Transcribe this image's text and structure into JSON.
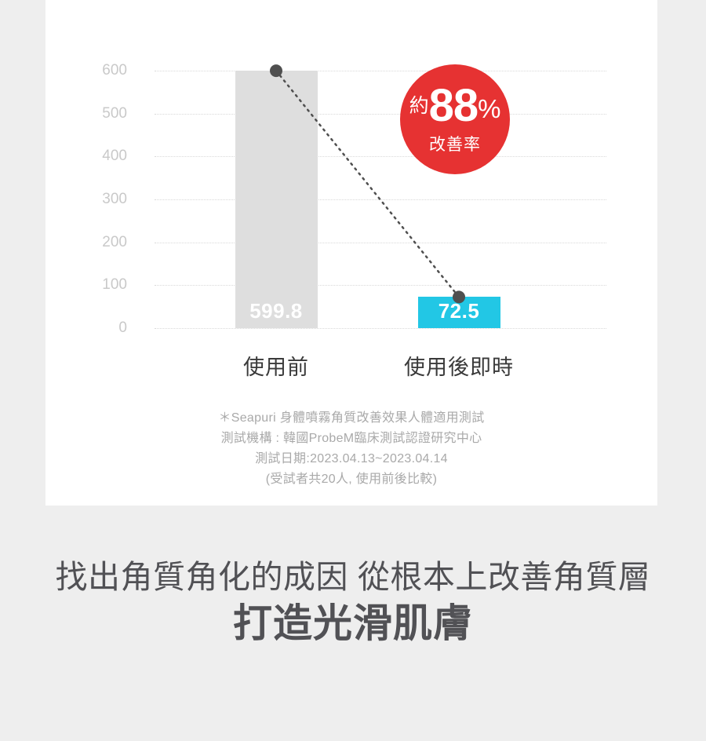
{
  "chart_data": {
    "type": "bar",
    "title": "",
    "categories": [
      "使用前",
      "使用後即時"
    ],
    "values": [
      599.8,
      72.5
    ],
    "value_labels": [
      "599.8",
      "72.5"
    ],
    "bar_colors": [
      "#dedede",
      "#22c7e5"
    ],
    "value_label_color": "#ffffff",
    "xlabel": "",
    "ylabel": "",
    "ylim": [
      0,
      600
    ],
    "yticks": [
      0,
      100,
      200,
      300,
      400,
      500,
      600
    ],
    "grid": true,
    "legend": false,
    "connector": {
      "style": "dashed",
      "color": "#4f4f4f",
      "from_category": "使用前",
      "to_category": "使用後即時"
    },
    "annotation": {
      "shape": "circle",
      "color": "#e63232",
      "text_color": "#ffffff",
      "prefix": "約",
      "value": "88",
      "suffix": "%",
      "label": "改善率"
    }
  },
  "footnote": {
    "lines": [
      "＊Seapuri 身體噴霧角質改善效果人體適用測試",
      "測試機構 : 韓國ProbeM臨床測試認證研究中心",
      "測試日期:2023.04.13~2023.04.14",
      "(受試者共20人, 使用前後比較)"
    ]
  },
  "headline": {
    "line1": "找出角質角化的成因 從根本上改善角質層",
    "line2": "打造光滑肌膚"
  },
  "colors": {
    "page_bg": "#eeeeee",
    "card_bg": "#ffffff",
    "grid_line": "#d9d9d9",
    "tick_label": "#c9c9c9",
    "category_label": "#3a3a3a",
    "footnote_text": "#a9a9a9",
    "headline_text": "#515155"
  }
}
